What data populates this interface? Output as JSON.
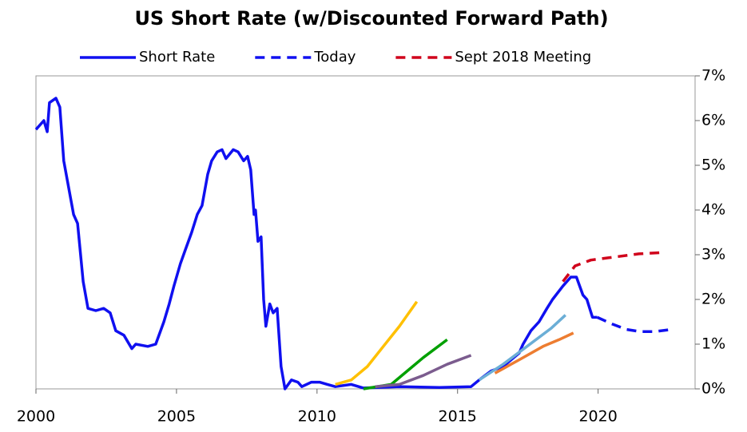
{
  "chart_data": {
    "type": "line",
    "title": "US Short Rate (w/Discounted Forward Path)",
    "xlim": [
      2000,
      2023.45
    ],
    "xticks": [
      2000,
      2005,
      2010,
      2015,
      2020
    ],
    "ylim": [
      0,
      7
    ],
    "yticks": [
      {
        "value": 0,
        "label": "0%"
      },
      {
        "value": 1,
        "label": "1%"
      },
      {
        "value": 2,
        "label": "2%"
      },
      {
        "value": 3,
        "label": "3%"
      },
      {
        "value": 4,
        "label": "4%"
      },
      {
        "value": 5,
        "label": "5%"
      },
      {
        "value": 6,
        "label": "6%"
      },
      {
        "value": 7,
        "label": "7%"
      }
    ],
    "y_axis_side": "right",
    "series": [
      {
        "name": "Short Rate",
        "color": "#1010f0",
        "dash": false,
        "x": [
          2000.0,
          2000.28,
          2000.4,
          2000.48,
          2000.71,
          2000.85,
          2000.99,
          2001.34,
          2001.48,
          2001.68,
          2001.85,
          2002.13,
          2002.41,
          2002.64,
          2002.84,
          2003.13,
          2003.41,
          2003.55,
          2003.98,
          2004.26,
          2004.55,
          2004.74,
          2004.91,
          2005.14,
          2005.31,
          2005.54,
          2005.74,
          2005.91,
          2006.11,
          2006.25,
          2006.45,
          2006.62,
          2006.76,
          2007.02,
          2007.19,
          2007.39,
          2007.53,
          2007.64,
          2007.76,
          2007.81,
          2007.9,
          2008.01,
          2008.1,
          2008.18,
          2008.32,
          2008.44,
          2008.58,
          2008.72,
          2008.86,
          2009.09,
          2009.32,
          2009.46,
          2009.8,
          2010.09,
          2010.37,
          2010.65,
          2011.22,
          2011.65,
          2012.93,
          2014.35,
          2015.48,
          2015.77,
          2016.19,
          2016.62,
          2017.19,
          2017.33,
          2017.61,
          2017.9,
          2018.18,
          2018.38,
          2018.75,
          2019.03,
          2019.23,
          2019.46,
          2019.6,
          2019.8,
          2019.97
        ],
        "values": [
          5.8,
          6.0,
          5.75,
          6.4,
          6.5,
          6.3,
          5.1,
          3.9,
          3.7,
          2.4,
          1.8,
          1.75,
          1.8,
          1.7,
          1.3,
          1.2,
          0.9,
          1.0,
          0.95,
          1.0,
          1.5,
          1.9,
          2.3,
          2.8,
          3.1,
          3.5,
          3.9,
          4.1,
          4.8,
          5.1,
          5.3,
          5.35,
          5.15,
          5.35,
          5.3,
          5.1,
          5.2,
          4.9,
          3.9,
          4.0,
          3.3,
          3.4,
          2.0,
          1.4,
          1.9,
          1.7,
          1.8,
          0.5,
          0.0,
          0.2,
          0.15,
          0.05,
          0.15,
          0.15,
          0.1,
          0.05,
          0.1,
          0.02,
          0.05,
          0.03,
          0.05,
          0.2,
          0.4,
          0.5,
          0.8,
          1.0,
          1.3,
          1.5,
          1.8,
          2.0,
          2.3,
          2.5,
          2.5,
          2.1,
          2.0,
          1.6,
          1.6
        ]
      },
      {
        "name": "Today",
        "color": "#1010f0",
        "dash": true,
        "x": [
          2019.97,
          2020.5,
          2021.0,
          2021.5,
          2022.0,
          2022.5
        ],
        "values": [
          1.6,
          1.45,
          1.33,
          1.28,
          1.28,
          1.32
        ]
      },
      {
        "name": "Sept 2018 Meeting",
        "color": "#d0021b",
        "dash": true,
        "x": [
          2018.75,
          2019.18,
          2019.74,
          2020.6,
          2021.45,
          2022.3
        ],
        "values": [
          2.4,
          2.75,
          2.88,
          2.95,
          3.02,
          3.05
        ]
      },
      {
        "color": "#ffc000",
        "dash": false,
        "x": [
          2010.65,
          2011.22,
          2011.79,
          2012.36,
          2012.93,
          2013.55
        ],
        "values": [
          0.1,
          0.2,
          0.5,
          0.95,
          1.4,
          1.95
        ]
      },
      {
        "color": "#00a000",
        "dash": false,
        "x": [
          2011.65,
          2012.64,
          2013.21,
          2013.78,
          2014.63
        ],
        "values": [
          0.0,
          0.1,
          0.4,
          0.7,
          1.1
        ]
      },
      {
        "color": "#7b5c8e",
        "dash": false,
        "x": [
          2012.07,
          2012.93,
          2013.78,
          2014.63,
          2015.48
        ],
        "values": [
          0.05,
          0.1,
          0.3,
          0.55,
          0.75
        ]
      },
      {
        "color": "#6baed6",
        "dash": false,
        "x": [
          2015.77,
          2016.62,
          2017.47,
          2018.32,
          2018.84
        ],
        "values": [
          0.2,
          0.55,
          0.95,
          1.35,
          1.65
        ]
      },
      {
        "color": "#ed7d31",
        "dash": false,
        "x": [
          2016.33,
          2017.19,
          2018.04,
          2018.61,
          2019.12
        ],
        "values": [
          0.35,
          0.65,
          0.95,
          1.1,
          1.25
        ]
      }
    ]
  }
}
